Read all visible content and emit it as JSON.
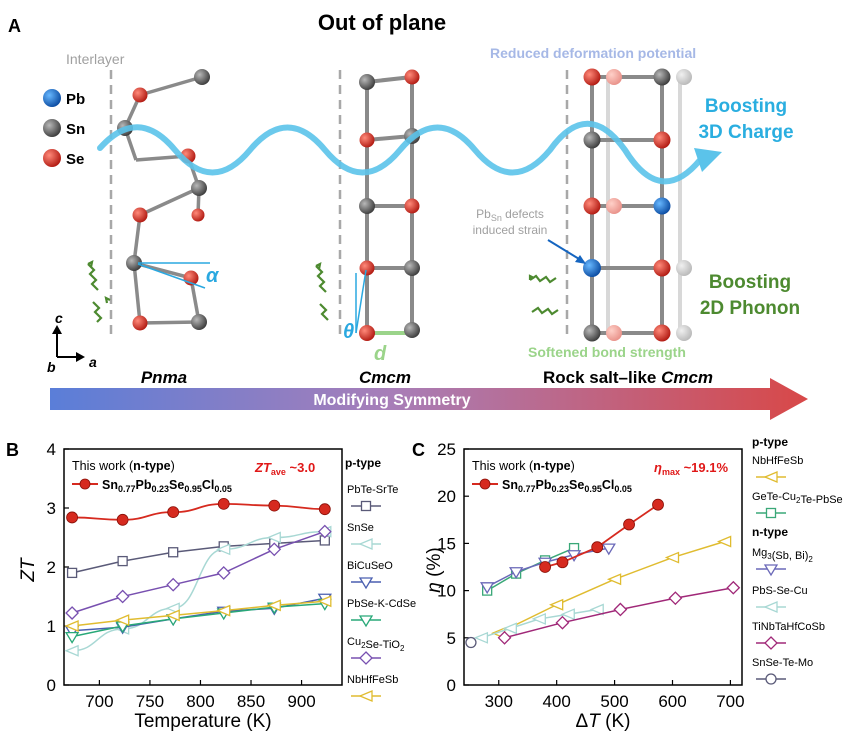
{
  "panel_a": {
    "letter": "A",
    "title": "Out of plane",
    "legend": [
      {
        "label": "Pb",
        "color": "#1565c0"
      },
      {
        "label": "Sn",
        "color": "#555555"
      },
      {
        "label": "Se",
        "color": "#d62a1f"
      }
    ],
    "interlayer": "Interlayer",
    "reduced_deformation": "Reduced deformation potential",
    "boost_charge_line1": "Boosting",
    "boost_charge_line2": "3D Charge",
    "defects_line1_prefix": "Pb",
    "defects_line1_sub": "Sn",
    "defects_line1_suffix": " defects",
    "defects_line2": "induced strain",
    "boost_phonon_line1": "Boosting",
    "boost_phonon_line2": "2D Phonon",
    "softened_bond": "Softened bond strength",
    "alpha": "α",
    "theta": "θ",
    "d_label": "d",
    "axis_c": "c",
    "axis_b": "b",
    "axis_a": "a",
    "phase_1": "Pnma",
    "phase_2": "Cmcm",
    "phase_3": "Rock salt–like ",
    "phase_3_italic": "Cmcm",
    "arrow_label": "Modifying Symmetry",
    "colors": {
      "charge": "#5bc3ea",
      "phonon": "#4d8a30",
      "bond": "#9bd48a",
      "dash": "#a8a8a8",
      "deform": "#a6b8e6"
    }
  },
  "chart_data": [
    {
      "type": "line",
      "panel": "B",
      "xlabel": "Temperature (K)",
      "ylabel": "ZT",
      "xlim": [
        665,
        940
      ],
      "ylim": [
        0,
        4
      ],
      "xticks": [
        700,
        750,
        800,
        850,
        900
      ],
      "yticks": [
        0,
        1,
        2,
        3,
        4
      ],
      "this_work_prefix": "This work (",
      "this_work_type": "n-type",
      "this_work_suffix": ")",
      "formula": "Sn0.77Pb0.23Se0.95Cl0.05",
      "annotation": "ZTave ~3.0",
      "legend_head": "p-type",
      "series": [
        {
          "name": "This work",
          "color": "#d62a1f",
          "marker": "circle",
          "x": [
            673,
            723,
            773,
            823,
            873,
            923
          ],
          "y": [
            2.84,
            2.8,
            2.93,
            3.07,
            3.04,
            2.98
          ]
        },
        {
          "name": "PbTe-SrTe",
          "color": "#5a5a78",
          "marker": "square",
          "x": [
            673,
            723,
            773,
            823,
            873,
            923
          ],
          "y": [
            1.9,
            2.1,
            2.25,
            2.35,
            2.4,
            2.45
          ]
        },
        {
          "name": "SnSe",
          "color": "#a8d8d4",
          "marker": "tri-left",
          "x": [
            673,
            723,
            773,
            823,
            873,
            923
          ],
          "y": [
            0.58,
            0.95,
            1.3,
            2.3,
            2.5,
            2.6
          ]
        },
        {
          "name": "BiCuSeO",
          "color": "#4a5fb0",
          "marker": "tri-down",
          "x": [
            673,
            723,
            773,
            823,
            873,
            923
          ],
          "y": [
            0.92,
            0.98,
            1.12,
            1.25,
            1.3,
            1.47
          ]
        },
        {
          "name": "PbSe-K-CdSe",
          "color": "#28a878",
          "marker": "tri-down",
          "x": [
            673,
            723,
            773,
            823,
            873,
            923
          ],
          "y": [
            0.82,
            1.0,
            1.12,
            1.22,
            1.32,
            1.38
          ]
        },
        {
          "name": "Cu2Se-TiO2",
          "color": "#7850b0",
          "marker": "diamond",
          "x": [
            673,
            723,
            773,
            823,
            873,
            923
          ],
          "y": [
            1.22,
            1.5,
            1.7,
            1.9,
            2.3,
            2.6
          ]
        },
        {
          "name": "NbHfFeSb",
          "color": "#e0bc30",
          "marker": "tri-left",
          "x": [
            673,
            723,
            773,
            823,
            873,
            923
          ],
          "y": [
            1.0,
            1.1,
            1.18,
            1.26,
            1.35,
            1.42
          ]
        }
      ]
    },
    {
      "type": "line",
      "panel": "C",
      "xlabel": "ΔT (K)",
      "ylabel": "η (%)",
      "xlim": [
        240,
        720
      ],
      "ylim": [
        0,
        25
      ],
      "xticks": [
        300,
        400,
        500,
        600,
        700
      ],
      "yticks": [
        0,
        5,
        10,
        15,
        20,
        25
      ],
      "this_work_prefix": "This work (",
      "this_work_type": "n-type",
      "this_work_suffix": ")",
      "formula": "Sn0.77Pb0.23Se0.95Cl0.05",
      "annotation": "ηmax ~19.1%",
      "legend_p_head": "p-type",
      "legend_n_head": "n-type",
      "series": [
        {
          "name": "This work",
          "color": "#d62a1f",
          "marker": "circle",
          "x": [
            380,
            410,
            470,
            525,
            575
          ],
          "y": [
            12.5,
            13.0,
            14.6,
            17.0,
            19.1
          ]
        },
        {
          "name": "NbHfFeSb",
          "type": "p",
          "color": "#e0bc30",
          "marker": "tri-left",
          "x": [
            300,
            400,
            500,
            600,
            690
          ],
          "y": [
            5.5,
            8.5,
            11.2,
            13.5,
            15.2
          ]
        },
        {
          "name": "GeTe-Cu2Te-PbSe",
          "type": "p",
          "color": "#3aa878",
          "marker": "square",
          "x": [
            280,
            330,
            380,
            430
          ],
          "y": [
            10.0,
            11.8,
            13.2,
            14.5
          ]
        },
        {
          "name": "Mg3(Sb, Bi)2",
          "type": "n",
          "color": "#6a68b8",
          "marker": "tri-down",
          "x": [
            280,
            330,
            380,
            430,
            490
          ],
          "y": [
            10.4,
            12.0,
            13.0,
            13.8,
            14.5
          ]
        },
        {
          "name": "PbS-Se-Cu",
          "type": "n",
          "color": "#a8d8d4",
          "marker": "tri-left",
          "x": [
            270,
            320,
            370,
            420,
            470
          ],
          "y": [
            5.0,
            6.0,
            7.0,
            7.5,
            8.0
          ]
        },
        {
          "name": "TiNbTaHfCoSb",
          "type": "n",
          "color": "#a02878",
          "marker": "diamond",
          "x": [
            310,
            410,
            510,
            605,
            705
          ],
          "y": [
            5.0,
            6.6,
            8.0,
            9.2,
            10.3
          ]
        },
        {
          "name": "SnSe-Te-Mo",
          "type": "n",
          "color": "#5a5a78",
          "marker": "circle-open",
          "x": [
            252
          ],
          "y": [
            4.5
          ]
        }
      ]
    }
  ]
}
